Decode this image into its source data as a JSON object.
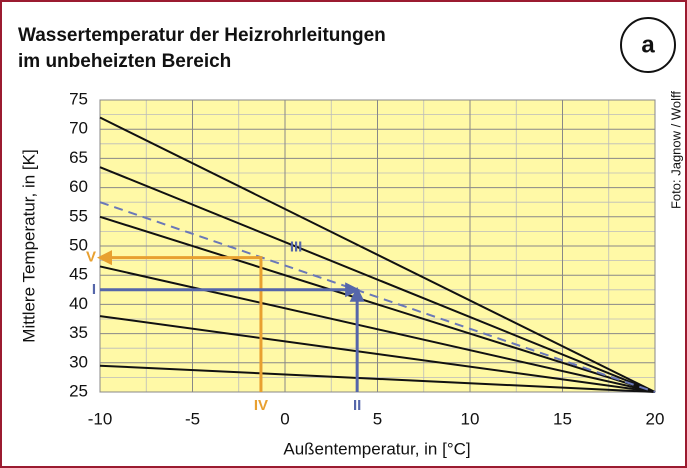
{
  "chart_data": {
    "type": "line",
    "title": [
      "Wassertemperatur der Heizrohrleitungen",
      "im unbeheizten Bereich"
    ],
    "badge": "a",
    "credit": "Foto: Jagnow / Wolff",
    "xlabel": "Außentemperatur, in [°C]",
    "ylabel": "Mittlere Temperatur, in [K]",
    "xlim": [
      -10,
      20
    ],
    "ylim": [
      25,
      75
    ],
    "xticks": [
      -10,
      -5,
      0,
      5,
      10,
      15,
      20
    ],
    "yticks": [
      25,
      30,
      35,
      40,
      45,
      50,
      55,
      60,
      65,
      70,
      75
    ],
    "grid": true,
    "minor_grid": true,
    "background": "#fff9a6",
    "series": [
      {
        "color": "#111111",
        "x": [
          -10,
          20
        ],
        "values": [
          72,
          25
        ]
      },
      {
        "color": "#111111",
        "x": [
          -10,
          20
        ],
        "values": [
          63.5,
          25
        ]
      },
      {
        "color": "#111111",
        "x": [
          -10,
          20
        ],
        "values": [
          55,
          25
        ]
      },
      {
        "color": "#111111",
        "x": [
          -10,
          20
        ],
        "values": [
          46.5,
          25
        ]
      },
      {
        "color": "#111111",
        "x": [
          -10,
          20
        ],
        "values": [
          38,
          25
        ]
      },
      {
        "color": "#111111",
        "x": [
          -10,
          20
        ],
        "values": [
          29.5,
          25
        ]
      },
      {
        "color": "#6a78b8",
        "dashed": true,
        "x": [
          -10,
          20
        ],
        "values": [
          57.5,
          25
        ]
      }
    ],
    "guides": [
      {
        "color": "#e8a030",
        "x": [
          -1.3,
          -1.3,
          -10
        ],
        "values": [
          25,
          48,
          48
        ]
      },
      {
        "color": "#5566aa",
        "x": [
          -10,
          3.9
        ],
        "values": [
          42.5,
          42.5
        ]
      },
      {
        "color": "#5566aa",
        "x": [
          3.9,
          3.9
        ],
        "values": [
          25,
          42.5
        ]
      }
    ],
    "annotations": [
      {
        "text": "IV",
        "color": "#e8a030",
        "x": -1.3,
        "y": 25
      },
      {
        "text": "V",
        "color": "#e8a030",
        "x": -10,
        "y": 48
      },
      {
        "text": "II",
        "color": "#5566aa",
        "x": 3.9,
        "y": 25
      },
      {
        "text": "I",
        "color": "#5566aa",
        "x": -10,
        "y": 42.5
      },
      {
        "text": "III",
        "color": "#5566aa",
        "x": 0.6,
        "y": 48
      }
    ]
  }
}
